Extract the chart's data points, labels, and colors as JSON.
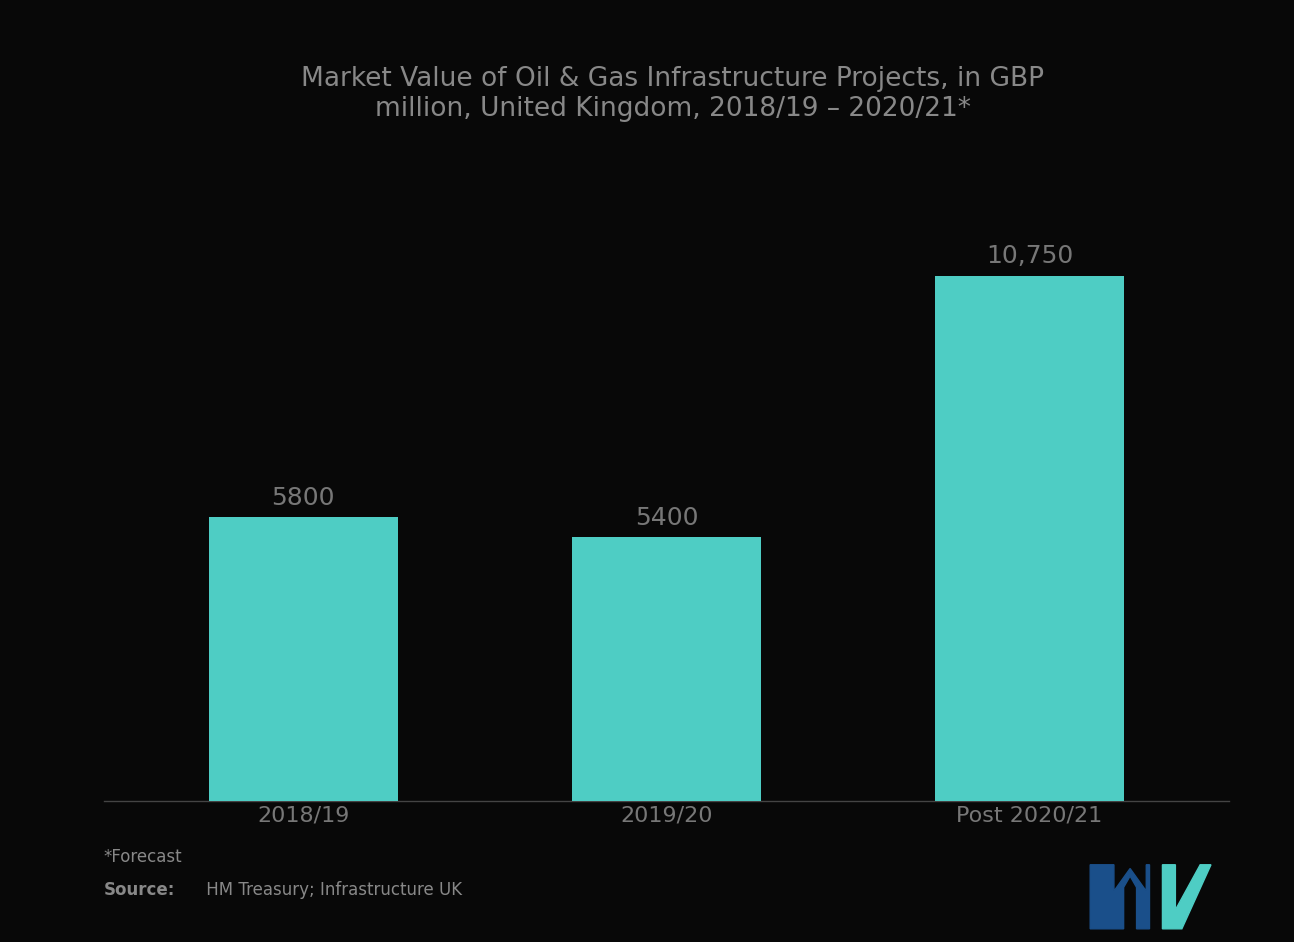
{
  "title": "Market Value of Oil & Gas Infrastructure Projects, in GBP\nmillion, United Kingdom, 2018/19 – 2020/21*",
  "categories": [
    "2018/19",
    "2019/20",
    "Post 2020/21"
  ],
  "values": [
    5800,
    5400,
    10750
  ],
  "value_labels": [
    "5800",
    "5400",
    "10,750"
  ],
  "bar_color": "#4ECDC4",
  "background_color": "#080808",
  "title_color": "#888888",
  "tick_label_color": "#777777",
  "annotation_color": "#777777",
  "title_fontsize": 19,
  "label_fontsize": 16,
  "value_fontsize": 18,
  "footnote_color": "#888888",
  "ylim": [
    0,
    13500
  ],
  "bar_width": 0.52,
  "xlim": [
    -0.55,
    2.55
  ]
}
